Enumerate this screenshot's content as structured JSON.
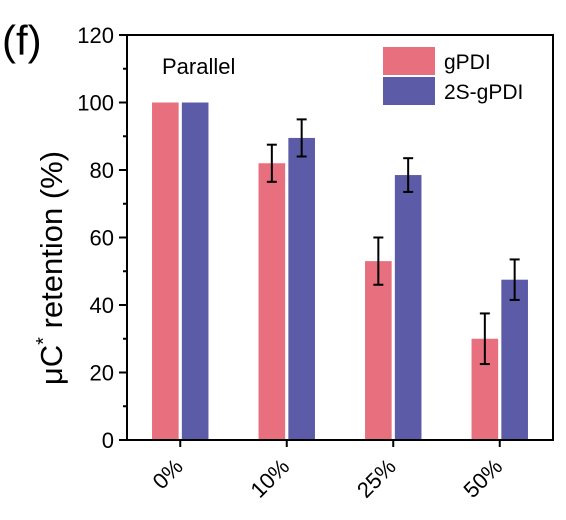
{
  "panel_label": "(f)",
  "colors": {
    "gPDI": "#e8707e",
    "2S-gPDI": "#5b5ba8",
    "axis": "#000000"
  },
  "chart_data": {
    "type": "bar",
    "title": "",
    "annotation": "Parallel",
    "ylabel_main": "μC",
    "ylabel_sup": "*",
    "ylabel_rest": " retention (%)",
    "ylabel": "μC* retention (%)",
    "xlabel": "",
    "ylim": [
      0,
      120
    ],
    "yticks": [
      0,
      20,
      40,
      60,
      80,
      100,
      120
    ],
    "categories": [
      "0%",
      "10%",
      "25%",
      "50%"
    ],
    "series": [
      {
        "name": "gPDI",
        "values": [
          100,
          82,
          53,
          30
        ],
        "errors": [
          0,
          5.5,
          7,
          7.5
        ]
      },
      {
        "name": "2S-gPDI",
        "values": [
          100,
          89.5,
          78.5,
          47.5
        ],
        "errors": [
          0,
          5.5,
          5,
          6
        ]
      }
    ],
    "legend_position": "top-right"
  }
}
